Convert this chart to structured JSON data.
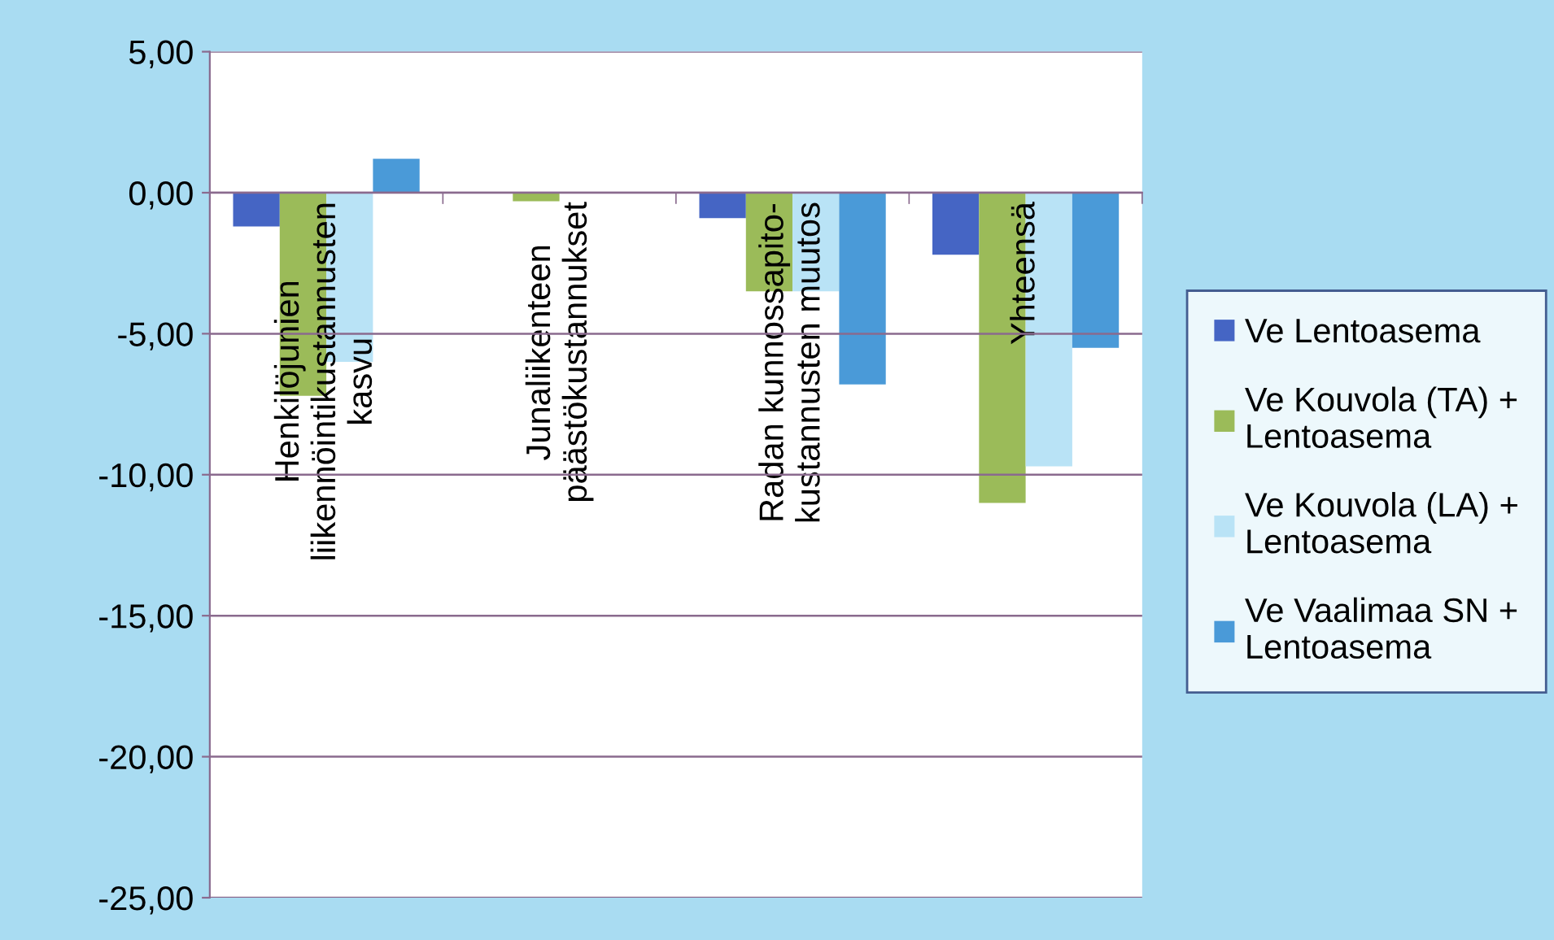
{
  "chart_data": {
    "type": "bar",
    "categories": [
      "Henkilöjunien\nliikennöintikustannusten\nkasvu",
      "Junaliikenteen\npäästökustannukset",
      "Radan kunnossapito-\nkustannusten muutos",
      "Yhteensä"
    ],
    "series": [
      {
        "name": "Ve Lentoasema",
        "color": "#4565c4",
        "values": [
          -1.2,
          0,
          -0.9,
          -2.2
        ]
      },
      {
        "name": "Ve Kouvola (TA) +\nLentoasema",
        "color": "#9bbb59",
        "values": [
          -7.2,
          -0.3,
          -3.5,
          -11.0
        ]
      },
      {
        "name": "Ve Kouvola (LA) +\nLentoasema",
        "color": "#b9e3f6",
        "values": [
          -6.0,
          0,
          -3.5,
          -9.7
        ]
      },
      {
        "name": "Ve Vaalimaa SN +\nLentoasema",
        "color": "#4a9ad8",
        "values": [
          1.2,
          0,
          -6.8,
          -5.5
        ]
      }
    ],
    "ylim": [
      -25,
      5
    ],
    "yticks": [
      {
        "value": 5,
        "label": "5,00"
      },
      {
        "value": 0,
        "label": "0,00"
      },
      {
        "value": -5,
        "label": "-5,00"
      },
      {
        "value": -10,
        "label": "-10,00"
      },
      {
        "value": -15,
        "label": "-15,00"
      },
      {
        "value": -20,
        "label": "-20,00"
      },
      {
        "value": -25,
        "label": "-25,00"
      }
    ],
    "grid": "y",
    "legend": "right"
  }
}
